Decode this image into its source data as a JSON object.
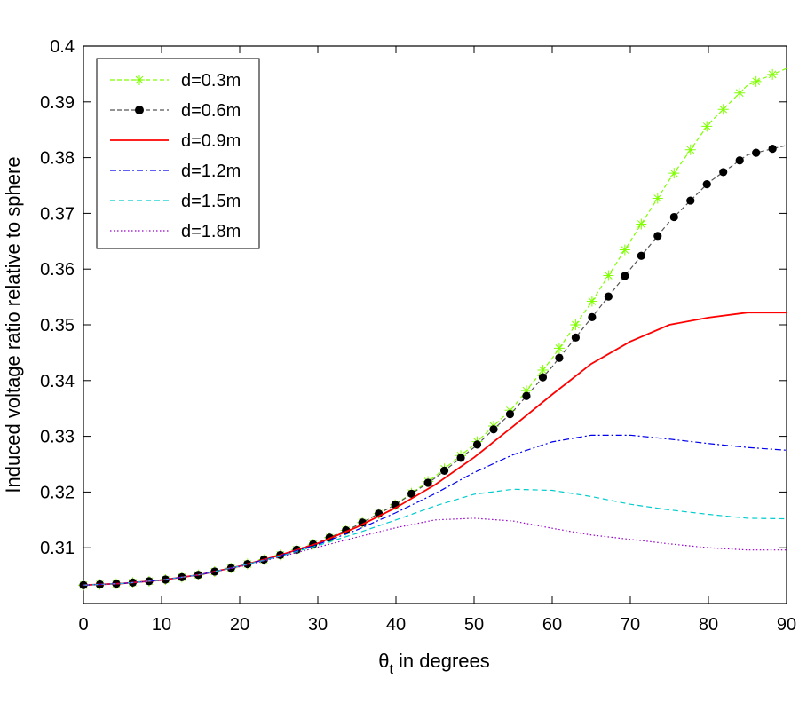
{
  "chart_data": {
    "type": "line",
    "title": "",
    "xlabel": {
      "main": "θ",
      "sub": "t",
      "rest": " in degrees"
    },
    "ylabel": "Induced voltage ratio relative to sphere",
    "xlim": [
      0,
      90
    ],
    "ylim": [
      0.3,
      0.4
    ],
    "xticks": [
      0,
      10,
      20,
      30,
      40,
      50,
      60,
      70,
      80,
      90
    ],
    "yticks": [
      0.31,
      0.32,
      0.33,
      0.34,
      0.35,
      0.36,
      0.37,
      0.38,
      0.39,
      0.4
    ],
    "ytick_labels": [
      "0.31",
      "0.32",
      "0.33",
      "0.34",
      "0.35",
      "0.36",
      "0.37",
      "0.38",
      "0.39",
      "0.4"
    ],
    "legend_position": "top-left",
    "series": [
      {
        "name": "d=0.3m",
        "color": "#7fff00",
        "style": "plus-marker-line",
        "x": [
          0,
          5,
          10,
          15,
          20,
          25,
          30,
          35,
          40,
          45,
          50,
          55,
          60,
          65,
          70,
          75,
          80,
          85,
          90
        ],
        "values": [
          0.3033,
          0.3036,
          0.3042,
          0.3052,
          0.3067,
          0.3086,
          0.3109,
          0.314,
          0.3178,
          0.3228,
          0.3285,
          0.3352,
          0.344,
          0.354,
          0.365,
          0.376,
          0.386,
          0.393,
          0.396
        ]
      },
      {
        "name": "d=0.6m",
        "color": "#000000",
        "style": "dot-marker-line",
        "x": [
          0,
          5,
          10,
          15,
          20,
          25,
          30,
          35,
          40,
          45,
          50,
          55,
          60,
          65,
          70,
          75,
          80,
          85,
          90
        ],
        "values": [
          0.3033,
          0.3036,
          0.3042,
          0.3052,
          0.3067,
          0.3086,
          0.3109,
          0.314,
          0.3178,
          0.3225,
          0.328,
          0.3345,
          0.3425,
          0.3512,
          0.36,
          0.3685,
          0.3755,
          0.3805,
          0.3822
        ]
      },
      {
        "name": "d=0.9m",
        "color": "#ff0000",
        "style": "solid",
        "x": [
          0,
          5,
          10,
          15,
          20,
          25,
          30,
          35,
          40,
          45,
          50,
          55,
          60,
          65,
          70,
          75,
          80,
          85,
          90
        ],
        "values": [
          0.3033,
          0.3036,
          0.3042,
          0.3052,
          0.3067,
          0.3086,
          0.3108,
          0.3137,
          0.3172,
          0.3213,
          0.3262,
          0.3318,
          0.3375,
          0.343,
          0.347,
          0.35,
          0.3513,
          0.3522,
          0.3522
        ]
      },
      {
        "name": "d=1.2m",
        "color": "#0000ee",
        "style": "dash-dot",
        "x": [
          0,
          5,
          10,
          15,
          20,
          25,
          30,
          35,
          40,
          45,
          50,
          55,
          60,
          65,
          70,
          75,
          80,
          85,
          90
        ],
        "values": [
          0.3033,
          0.3036,
          0.3042,
          0.3052,
          0.3067,
          0.3085,
          0.3106,
          0.3132,
          0.3163,
          0.3197,
          0.3235,
          0.3267,
          0.329,
          0.3302,
          0.3302,
          0.3295,
          0.3287,
          0.328,
          0.3275
        ]
      },
      {
        "name": "d=1.5m",
        "color": "#00cccc",
        "style": "dashed",
        "x": [
          0,
          5,
          10,
          15,
          20,
          25,
          30,
          35,
          40,
          45,
          50,
          55,
          60,
          65,
          70,
          75,
          80,
          85,
          90
        ],
        "values": [
          0.3033,
          0.3036,
          0.3042,
          0.3052,
          0.3067,
          0.3084,
          0.3104,
          0.3126,
          0.315,
          0.3175,
          0.3196,
          0.3205,
          0.3203,
          0.3192,
          0.3178,
          0.3168,
          0.316,
          0.3153,
          0.3152
        ]
      },
      {
        "name": "d=1.8m",
        "color": "#9900cc",
        "style": "dotted",
        "x": [
          0,
          5,
          10,
          15,
          20,
          25,
          30,
          35,
          40,
          45,
          50,
          55,
          60,
          65,
          70,
          75,
          80,
          85,
          90
        ],
        "values": [
          0.3033,
          0.3036,
          0.3042,
          0.3052,
          0.3066,
          0.3083,
          0.3101,
          0.3119,
          0.3136,
          0.315,
          0.3153,
          0.3148,
          0.3135,
          0.3123,
          0.3115,
          0.3107,
          0.31,
          0.3096,
          0.3096
        ]
      }
    ]
  }
}
